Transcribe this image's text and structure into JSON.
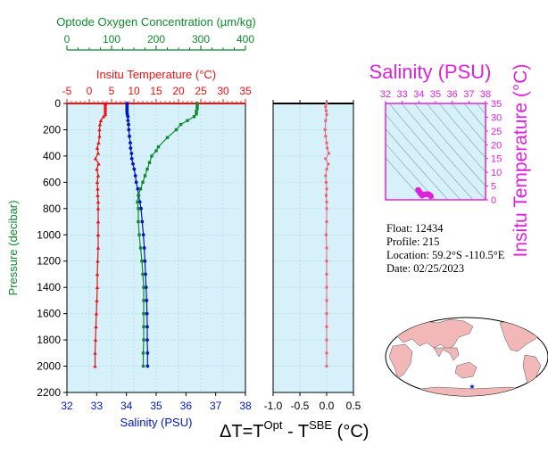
{
  "colors": {
    "oxygen": "#108a2c",
    "temperature": "#ee1111",
    "salinity": "#0016c8",
    "delta": "#f06070",
    "magenta": "#dd22dd",
    "plot_bg": "#d6f1fa"
  },
  "chart_data": [
    {
      "type": "line",
      "panel": "main-profile",
      "ylabel": "Pressure (decibar)",
      "ylim": [
        2200,
        0
      ],
      "y_ticks": [
        "0",
        "200",
        "400",
        "600",
        "800",
        "1000",
        "1200",
        "1400",
        "1600",
        "1800",
        "2000",
        "2200"
      ],
      "axes": {
        "oxygen": {
          "label": "Optode Oxygen Concentration (µm/kg)",
          "lim": [
            0,
            400
          ],
          "ticks": [
            "0",
            "100",
            "200",
            "300",
            "400"
          ]
        },
        "temperature": {
          "label": "Insitu Temperature (°C)",
          "lim": [
            -5,
            35
          ],
          "ticks": [
            "-5",
            "0",
            "5",
            "10",
            "15",
            "20",
            "25",
            "30",
            "35"
          ]
        },
        "salinity": {
          "label": "Salinity (PSU)",
          "lim": [
            32,
            38
          ],
          "ticks": [
            "32",
            "33",
            "34",
            "35",
            "36",
            "37",
            "38"
          ]
        }
      },
      "series": [
        {
          "key": "temperature",
          "axis": "temperature",
          "points": [
            [
              3.6,
              0
            ],
            [
              3.6,
              10
            ],
            [
              3.6,
              25
            ],
            [
              3.6,
              40
            ],
            [
              3.6,
              55
            ],
            [
              3.6,
              70
            ],
            [
              3.6,
              85
            ],
            [
              3.2,
              100
            ],
            [
              2.6,
              130
            ],
            [
              2.4,
              160
            ],
            [
              2.3,
              200
            ],
            [
              2.3,
              250
            ],
            [
              2.1,
              300
            ],
            [
              1.8,
              340
            ],
            [
              2.0,
              380
            ],
            [
              1.4,
              420
            ],
            [
              2.1,
              460
            ],
            [
              1.7,
              500
            ],
            [
              2.0,
              550
            ],
            [
              1.8,
              600
            ],
            [
              1.9,
              650
            ],
            [
              1.9,
              700
            ],
            [
              2.0,
              750
            ],
            [
              2.0,
              800
            ],
            [
              2.0,
              900
            ],
            [
              2.0,
              1000
            ],
            [
              2.0,
              1100
            ],
            [
              1.9,
              1200
            ],
            [
              1.8,
              1300
            ],
            [
              1.8,
              1400
            ],
            [
              1.7,
              1500
            ],
            [
              1.6,
              1600
            ],
            [
              1.5,
              1700
            ],
            [
              1.4,
              1800
            ],
            [
              1.3,
              1900
            ],
            [
              1.3,
              2000
            ]
          ]
        },
        {
          "key": "salinity",
          "axis": "salinity",
          "points": [
            [
              34.02,
              0
            ],
            [
              34.02,
              10
            ],
            [
              34.02,
              25
            ],
            [
              34.02,
              40
            ],
            [
              34.02,
              55
            ],
            [
              34.02,
              70
            ],
            [
              34.03,
              85
            ],
            [
              34.05,
              100
            ],
            [
              34.05,
              130
            ],
            [
              34.07,
              160
            ],
            [
              34.08,
              200
            ],
            [
              34.1,
              250
            ],
            [
              34.13,
              300
            ],
            [
              34.14,
              340
            ],
            [
              34.17,
              380
            ],
            [
              34.18,
              420
            ],
            [
              34.22,
              460
            ],
            [
              34.26,
              500
            ],
            [
              34.3,
              550
            ],
            [
              34.33,
              600
            ],
            [
              34.38,
              650
            ],
            [
              34.41,
              700
            ],
            [
              34.45,
              750
            ],
            [
              34.49,
              800
            ],
            [
              34.53,
              900
            ],
            [
              34.57,
              1000
            ],
            [
              34.6,
              1100
            ],
            [
              34.62,
              1200
            ],
            [
              34.64,
              1300
            ],
            [
              34.66,
              1400
            ],
            [
              34.68,
              1500
            ],
            [
              34.69,
              1600
            ],
            [
              34.7,
              1700
            ],
            [
              34.7,
              1800
            ],
            [
              34.71,
              1900
            ],
            [
              34.71,
              2000
            ]
          ]
        },
        {
          "key": "oxygen",
          "axis": "oxygen",
          "points": [
            [
              292,
              0
            ],
            [
              292,
              20
            ],
            [
              292,
              40
            ],
            [
              290,
              60
            ],
            [
              290,
              80
            ],
            [
              285,
              100
            ],
            [
              270,
              130
            ],
            [
              255,
              160
            ],
            [
              245,
              200
            ],
            [
              225,
              260
            ],
            [
              205,
              330
            ],
            [
              200,
              360
            ],
            [
              190,
              400
            ],
            [
              185,
              450
            ],
            [
              180,
              500
            ],
            [
              175,
              550
            ],
            [
              170,
              600
            ],
            [
              165,
              650
            ],
            [
              160,
              700
            ],
            [
              158,
              750
            ],
            [
              160,
              800
            ],
            [
              160,
              900
            ],
            [
              162,
              1000
            ],
            [
              165,
              1100
            ],
            [
              168,
              1200
            ],
            [
              170,
              1300
            ],
            [
              172,
              1400
            ],
            [
              172,
              1500
            ],
            [
              172,
              1600
            ],
            [
              172,
              1700
            ],
            [
              172,
              1800
            ],
            [
              171,
              1900
            ],
            [
              171,
              2000
            ]
          ]
        }
      ]
    },
    {
      "type": "line",
      "panel": "delta-t",
      "xlabel_parts": [
        "ΔT=T",
        "Opt",
        " - T",
        "SBE",
        " (°C)"
      ],
      "xlim": [
        -1.0,
        0.5
      ],
      "x_ticks": [
        "-1.0",
        "-0.5",
        "0.0",
        "0.5"
      ],
      "ylim": [
        2200,
        0
      ],
      "series": [
        {
          "key": "delta",
          "points": [
            [
              0.0,
              0
            ],
            [
              -0.02,
              25
            ],
            [
              -0.01,
              55
            ],
            [
              0.0,
              85
            ],
            [
              -0.02,
              130
            ],
            [
              -0.03,
              200
            ],
            [
              -0.02,
              250
            ],
            [
              0.0,
              300
            ],
            [
              0.01,
              340
            ],
            [
              0.04,
              380
            ],
            [
              -0.02,
              420
            ],
            [
              0.03,
              460
            ],
            [
              0.0,
              500
            ],
            [
              -0.02,
              550
            ],
            [
              -0.01,
              600
            ],
            [
              0.0,
              650
            ],
            [
              -0.01,
              700
            ],
            [
              0.0,
              750
            ],
            [
              0.0,
              800
            ],
            [
              0.0,
              900
            ],
            [
              -0.01,
              1000
            ],
            [
              0.0,
              1100
            ],
            [
              0.0,
              1200
            ],
            [
              0.0,
              1300
            ],
            [
              0.0,
              1400
            ],
            [
              0.0,
              1500
            ],
            [
              0.0,
              1600
            ],
            [
              0.0,
              1700
            ],
            [
              0.0,
              1800
            ],
            [
              0.0,
              1900
            ],
            [
              0.0,
              2000
            ]
          ]
        }
      ]
    },
    {
      "type": "scatter",
      "panel": "ts-diagram",
      "title": "Salinity (PSU)",
      "ylabel": "Insitu Temperature (°C)",
      "xlim": [
        32,
        38
      ],
      "x_ticks": [
        "32",
        "33",
        "34",
        "35",
        "36",
        "37",
        "38"
      ],
      "ylim": [
        0,
        35
      ],
      "y_ticks": [
        "0",
        "5",
        "10",
        "15",
        "20",
        "25",
        "30",
        "35"
      ],
      "points": [
        [
          33.95,
          3.6
        ],
        [
          34.0,
          3.3
        ],
        [
          34.05,
          2.6
        ],
        [
          34.1,
          2.2
        ],
        [
          34.15,
          1.9
        ],
        [
          34.2,
          1.6
        ],
        [
          34.3,
          1.9
        ],
        [
          34.45,
          2.0
        ],
        [
          34.6,
          2.0
        ],
        [
          34.7,
          1.5
        ],
        [
          34.72,
          1.3
        ],
        [
          34.5,
          2.1
        ],
        [
          34.3,
          2.0
        ],
        [
          34.1,
          2.4
        ]
      ]
    }
  ],
  "float_info": {
    "float": "Float:  12434",
    "profile": "Profile:  215",
    "location": "Location:  59.2°S  -110.5°E",
    "date": "Date:  02/25/2023"
  },
  "map": {
    "marker": "★",
    "marker_lat": -59.2,
    "marker_lon": -110.5
  }
}
